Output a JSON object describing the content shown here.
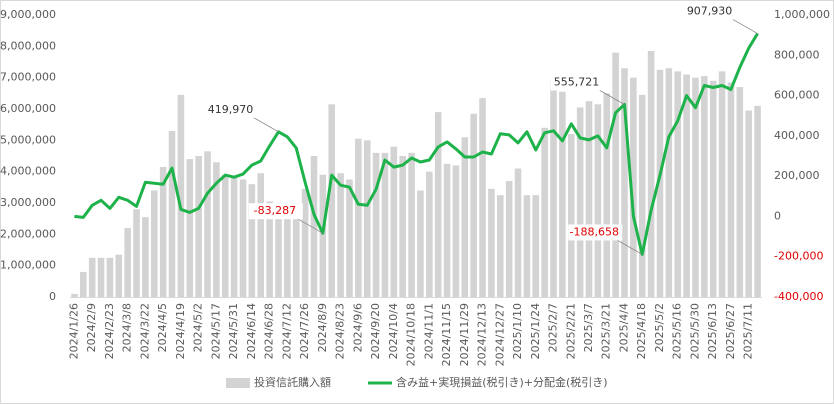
{
  "chart_data": {
    "type": "bar_line",
    "categories": [
      "2024/1/26",
      null,
      "2024/2/9",
      null,
      "2024/2/23",
      null,
      "2024/3/8",
      null,
      "2024/3/22",
      null,
      "2024/4/5",
      null,
      "2024/4/19",
      null,
      "2024/5/2",
      null,
      "2024/5/17",
      null,
      "2024/5/31",
      null,
      "2024/6/14",
      null,
      "2024/6/28",
      null,
      "2024/7/12",
      null,
      "2024/7/26",
      null,
      "2024/8/9",
      null,
      "2024/8/23",
      null,
      "2024/9/6",
      null,
      "2024/9/20",
      null,
      "2024/10/4",
      null,
      "2024/10/18",
      null,
      "2024/11/1",
      null,
      "2024/11/15",
      null,
      "2024/11/29",
      null,
      "2024/12/13",
      null,
      "2024/12/27",
      null,
      "2025/1/10",
      null,
      "2025/1/24",
      null,
      "2025/2/7",
      null,
      "2025/2/21",
      null,
      "2025/3/7",
      null,
      "2025/3/21",
      null,
      "2025/4/4",
      null,
      "2025/4/18",
      null,
      "2025/5/2",
      null,
      "2025/5/16",
      null,
      "2025/5/30",
      null,
      "2025/6/13",
      null,
      "2025/6/27",
      null,
      "2025/7/11",
      null
    ],
    "series": [
      {
        "name": "投資信託購入額",
        "color": "#d3d3d3",
        "axis": "y",
        "values": [
          100000,
          800000,
          1250000,
          1250000,
          1250000,
          1350000,
          2200000,
          2800000,
          2550000,
          3400000,
          4150000,
          5300000,
          6450000,
          4400000,
          4500000,
          4650000,
          4300000,
          3900000,
          3800000,
          3750000,
          3600000,
          3950000,
          3050000,
          2850000,
          2800000,
          3000000,
          3450000,
          4500000,
          3900000,
          6150000,
          3950000,
          3750000,
          5050000,
          5000000,
          4600000,
          4600000,
          4800000,
          4500000,
          4600000,
          3400000,
          4000000,
          5900000,
          4250000,
          4200000,
          5100000,
          5850000,
          6350000,
          3450000,
          3250000,
          3700000,
          4100000,
          3250000,
          3250000,
          5400000,
          6900000,
          6550000,
          5200000,
          6050000,
          6250000,
          6150000,
          6500000,
          7800000,
          7300000,
          7000000,
          6450000,
          7850000,
          7250000,
          7300000,
          7200000,
          7100000,
          7000000,
          7050000,
          6900000,
          7200000,
          6850000,
          6700000,
          5950000,
          6100000
        ]
      },
      {
        "name": "含み益+実現損益(税引き)+分配金(税引き)",
        "color": "#1db34a",
        "axis": "y2",
        "values": [
          0,
          -5000,
          55000,
          80000,
          40000,
          95000,
          80000,
          50000,
          170000,
          165000,
          160000,
          240000,
          35000,
          20000,
          40000,
          115000,
          165000,
          205000,
          195000,
          210000,
          255000,
          275000,
          350000,
          419970,
          395000,
          340000,
          170000,
          10000,
          -83287,
          205000,
          155000,
          145000,
          60000,
          55000,
          135000,
          280000,
          245000,
          255000,
          290000,
          270000,
          280000,
          345000,
          370000,
          335000,
          295000,
          295000,
          320000,
          310000,
          410000,
          405000,
          365000,
          420000,
          330000,
          415000,
          425000,
          375000,
          460000,
          390000,
          380000,
          400000,
          340000,
          515000,
          555721,
          0,
          -188658,
          30000,
          205000,
          395000,
          475000,
          600000,
          540000,
          650000,
          640000,
          650000,
          630000,
          740000,
          835000,
          907930
        ],
        "value_labels": [
          null,
          null,
          null,
          null,
          null,
          null,
          null,
          null,
          null,
          null,
          null,
          null,
          null,
          null,
          null,
          null,
          null,
          null,
          null,
          null,
          null,
          null,
          null,
          "419,970",
          null,
          null,
          null,
          null,
          "-83,287",
          null,
          null,
          null,
          null,
          null,
          null,
          null,
          null,
          null,
          null,
          null,
          null,
          null,
          null,
          null,
          null,
          null,
          null,
          null,
          null,
          null,
          null,
          null,
          null,
          null,
          null,
          null,
          null,
          null,
          null,
          null,
          null,
          null,
          "555,721",
          null,
          "-188,658",
          null,
          null,
          null,
          null,
          null,
          null,
          null,
          null,
          null,
          null,
          null,
          null,
          "907,930"
        ]
      }
    ],
    "ylim": [
      0,
      9000000
    ],
    "yticks": [
      0,
      {
        "value": 1000000,
        "label": "1,000,000"
      },
      {
        "value": 2000000,
        "label": "2,000,000"
      },
      {
        "value": 3000000,
        "label": "3,000,000"
      },
      {
        "value": 4000000,
        "label": "4,000,000"
      },
      {
        "value": 5000000,
        "label": "5,000,000"
      },
      {
        "value": 6000000,
        "label": "6,000,000"
      },
      {
        "value": 7000000,
        "label": "7,000,000"
      },
      {
        "value": 8000000,
        "label": "8,000,000"
      },
      {
        "value": 9000000,
        "label": "9,000,000"
      }
    ],
    "y2lim": [
      -400000,
      1000000
    ],
    "y2ticks": [
      {
        "value": -400000,
        "label": "-400,000"
      },
      {
        "value": -200000,
        "label": "-200,000"
      },
      0,
      {
        "value": 200000,
        "label": "200,000"
      },
      {
        "value": 400000,
        "label": "400,000"
      },
      {
        "value": 600000,
        "label": "600,000"
      },
      {
        "value": 800000,
        "label": "800,000"
      },
      {
        "value": 1000000,
        "label": "1,000,000"
      }
    ],
    "legend": "bottom"
  }
}
